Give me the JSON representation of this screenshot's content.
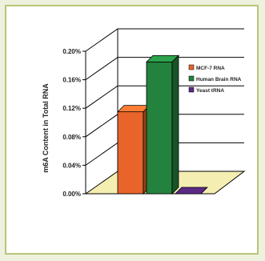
{
  "chart_data": {
    "type": "bar",
    "title": "",
    "ylabel": "m6A Content in Total RNA",
    "xlabel": "",
    "categories": [
      "MCF-7 RNA",
      "Human Brain RNA",
      "Yeast tRNA"
    ],
    "values": [
      0.115,
      0.185,
      0.0
    ],
    "unit": "%",
    "ylim": [
      0.0,
      0.2
    ],
    "yticks": [
      "0.00%",
      "0.04%",
      "0.08%",
      "0.12%",
      "0.16%",
      "0.20%"
    ],
    "legend": {
      "position": "right",
      "entries": [
        {
          "label": "MCF-7 RNA",
          "color": "#e8642a"
        },
        {
          "label": "Human Brain RNA",
          "color": "#23823d"
        },
        {
          "label": "Yeast tRNA",
          "color": "#5a2a86"
        }
      ]
    },
    "floor_color": "#f5eeb2",
    "grid": true,
    "style": "3d"
  }
}
